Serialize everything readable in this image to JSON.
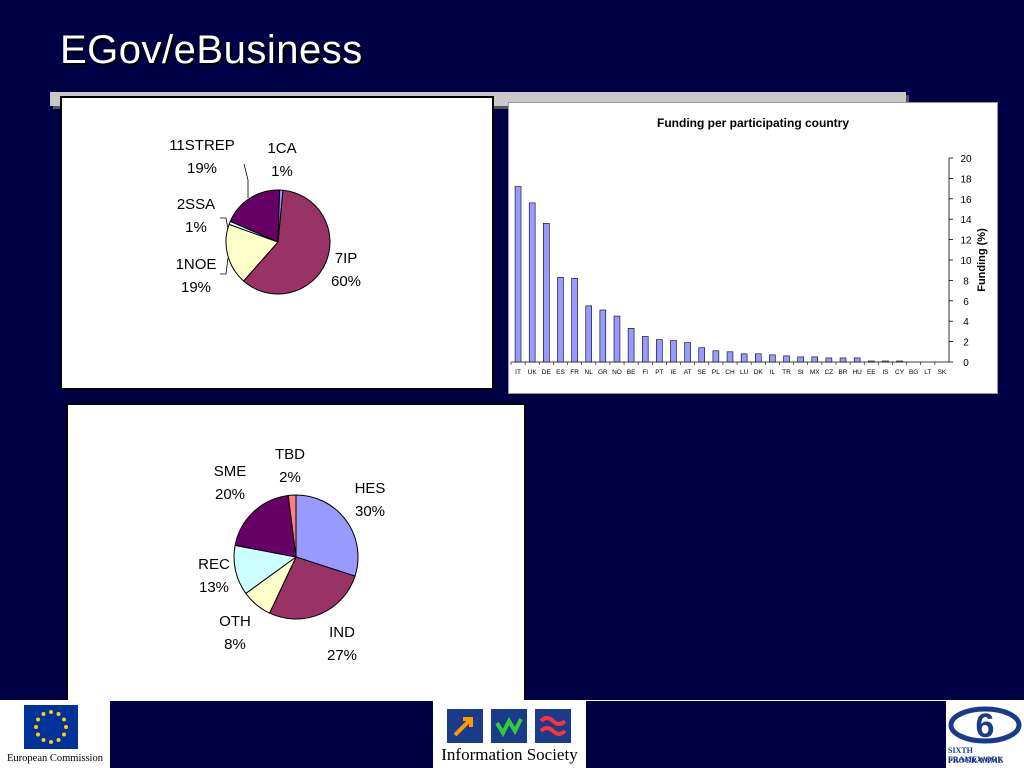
{
  "slide": {
    "title": "EGov/eBusiness"
  },
  "footer": {
    "ec_label": "European Commission",
    "is_label": "Information Society",
    "fp_label_1": "SIXTH FRAMEWORK",
    "fp_label_2": "PROGRAMME"
  },
  "chart_data": [
    {
      "type": "pie",
      "labels": [
        "7IP",
        "1NOE",
        "2SSA",
        "11STREP",
        "1CA"
      ],
      "values": [
        60,
        19,
        1,
        19,
        1
      ],
      "percent_labels": [
        "60%",
        "19%",
        "1%",
        "19%",
        "1%"
      ],
      "colors": [
        "#993366",
        "#ffffcc",
        "#ccffff",
        "#660066",
        "#9999ff"
      ]
    },
    {
      "type": "bar",
      "title": "Funding per participating country",
      "ylabel": "Funding (%)",
      "xlabel": "",
      "ylim": [
        0,
        20
      ],
      "yticks": [
        0,
        2,
        4,
        6,
        8,
        10,
        12,
        14,
        16,
        18,
        20
      ],
      "y_axis_side": "right",
      "grid": false,
      "bar_color": "#9999ff",
      "categories": [
        "IT",
        "UK",
        "DE",
        "ES",
        "FR",
        "NL",
        "GR",
        "NO",
        "BE",
        "FI",
        "PT",
        "IE",
        "AT",
        "SE",
        "PL",
        "CH",
        "LU",
        "DK",
        "IL",
        "TR",
        "SI",
        "MX",
        "CZ",
        "BR",
        "HU",
        "EE",
        "IS",
        "CY",
        "BG",
        "LT",
        "SK"
      ],
      "values": [
        17.2,
        15.6,
        13.6,
        8.3,
        8.2,
        5.5,
        5.1,
        4.5,
        3.3,
        2.5,
        2.2,
        2.1,
        1.9,
        1.4,
        1.1,
        1.0,
        0.8,
        0.8,
        0.7,
        0.6,
        0.5,
        0.5,
        0.4,
        0.4,
        0.4,
        0.1,
        0.1,
        0.1,
        0,
        0,
        0
      ]
    },
    {
      "type": "pie",
      "labels": [
        "HES",
        "IND",
        "OTH",
        "REC",
        "SME",
        "TBD"
      ],
      "values": [
        30,
        27,
        8,
        13,
        20,
        2
      ],
      "percent_labels": [
        "30%",
        "27%",
        "8%",
        "13%",
        "20%",
        "2%"
      ],
      "colors": [
        "#9999ff",
        "#993366",
        "#ffffcc",
        "#ccffff",
        "#660066",
        "#ff8080"
      ]
    }
  ]
}
